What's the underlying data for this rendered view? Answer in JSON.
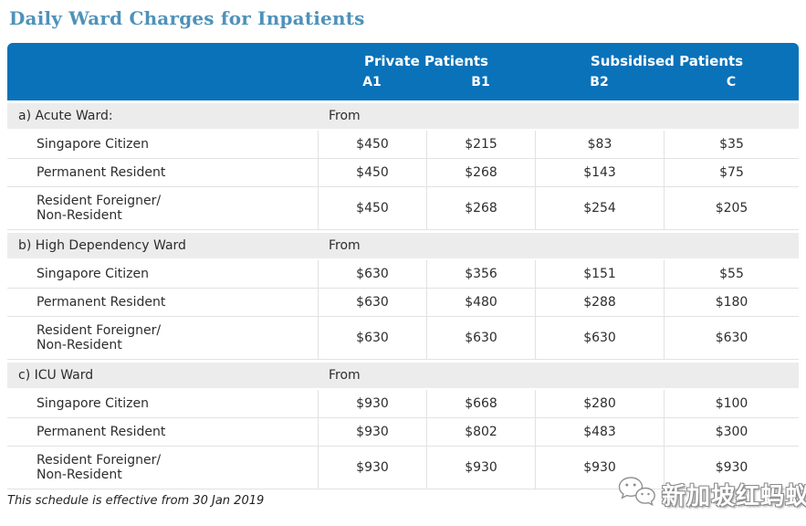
{
  "title": "Daily Ward Charges for Inpatients",
  "colors": {
    "header_bg": "#0a72b9",
    "title_text": "#4e92ba",
    "section_row_bg": "#ececec",
    "row_border": "#e2e2e2"
  },
  "table": {
    "group_headers": [
      {
        "label": "Private Patients"
      },
      {
        "label": "Subsidised Patients"
      }
    ],
    "column_headers": [
      "A1",
      "B1",
      "B2",
      "C"
    ],
    "sections": [
      {
        "label": "a) Acute Ward:",
        "note": "From",
        "rows": [
          {
            "label": "Singapore Citizen",
            "values": [
              "$450",
              "$215",
              "$83",
              "$35"
            ]
          },
          {
            "label": "Permanent Resident",
            "values": [
              "$450",
              "$268",
              "$143",
              "$75"
            ]
          },
          {
            "label": "Resident Foreigner/\nNon-Resident",
            "values": [
              "$450",
              "$268",
              "$254",
              "$205"
            ]
          }
        ]
      },
      {
        "label": "b) High Dependency Ward",
        "note": "From",
        "rows": [
          {
            "label": "Singapore Citizen",
            "values": [
              "$630",
              "$356",
              "$151",
              "$55"
            ]
          },
          {
            "label": "Permanent Resident",
            "values": [
              "$630",
              "$480",
              "$288",
              "$180"
            ]
          },
          {
            "label": "Resident Foreigner/\nNon-Resident",
            "values": [
              "$630",
              "$630",
              "$630",
              "$630"
            ]
          }
        ]
      },
      {
        "label": "c) ICU Ward",
        "note": "From",
        "rows": [
          {
            "label": "Singapore Citizen",
            "values": [
              "$930",
              "$668",
              "$280",
              "$100"
            ]
          },
          {
            "label": "Permanent Resident",
            "values": [
              "$930",
              "$802",
              "$483",
              "$300"
            ]
          },
          {
            "label": "Resident Foreigner/\nNon-Resident",
            "values": [
              "$930",
              "$930",
              "$930",
              "$930"
            ]
          }
        ]
      }
    ]
  },
  "footnote": "This schedule is effective from 30 Jan 2019",
  "watermark": {
    "icon": "wechat-icon",
    "text": "新加坡红蚂蚁"
  }
}
